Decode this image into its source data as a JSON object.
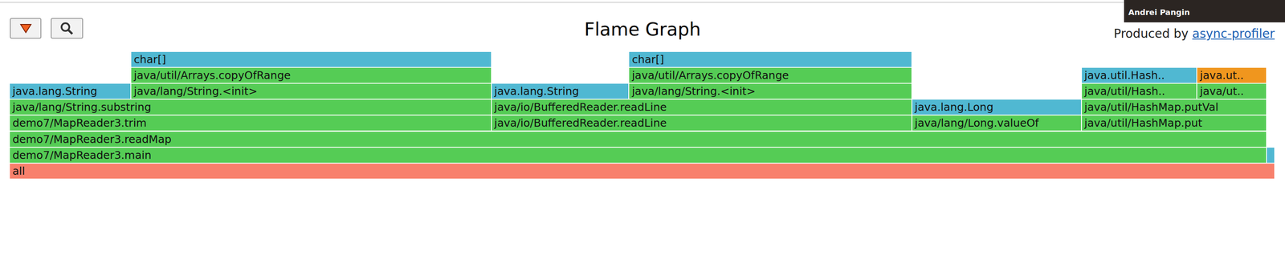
{
  "chart_data": {
    "type": "flame",
    "title": "Flame Graph",
    "annotations": [
      "Produced by",
      "async-profiler",
      "Andrei Pangin"
    ],
    "frames": [
      {
        "label": "all",
        "start": 0,
        "width": 100,
        "depth": 0,
        "color": "#f8806c"
      },
      {
        "label": "demo7/MapReader3.main",
        "start": 0,
        "width": 99.35,
        "depth": 1,
        "color": "#55cc55"
      },
      {
        "label": null,
        "start": 99.35,
        "width": 0.65,
        "depth": 1,
        "color": "#50b8d2"
      },
      {
        "label": "demo7/MapReader3.readMap",
        "start": 0,
        "width": 99.35,
        "depth": 2,
        "color": "#55cc55"
      },
      {
        "label": "demo7/MapReader3.trim",
        "start": 0,
        "width": 38.08,
        "depth": 3,
        "color": "#55cc55"
      },
      {
        "label": "java/io/BufferedReader.readLine",
        "start": 38.08,
        "width": 33.23,
        "depth": 3,
        "color": "#55cc55"
      },
      {
        "label": "java/lang/Long.valueOf",
        "start": 71.31,
        "width": 13.41,
        "depth": 3,
        "color": "#55cc55"
      },
      {
        "label": "java/util/HashMap.put",
        "start": 84.72,
        "width": 14.63,
        "depth": 3,
        "color": "#55cc55"
      },
      {
        "label": "java/lang/String.substring",
        "start": 0,
        "width": 38.08,
        "depth": 4,
        "color": "#55cc55"
      },
      {
        "label": "java/io/BufferedReader.readLine",
        "start": 38.08,
        "width": 33.23,
        "depth": 4,
        "color": "#55cc55"
      },
      {
        "label": "java.lang.Long",
        "start": 71.31,
        "width": 13.41,
        "depth": 4,
        "color": "#50b8d2"
      },
      {
        "label": "java/util/HashMap.putVal",
        "start": 84.72,
        "width": 14.63,
        "depth": 4,
        "color": "#55cc55"
      },
      {
        "label": "java.lang.String",
        "start": 0,
        "width": 9.59,
        "depth": 5,
        "color": "#50b8d2"
      },
      {
        "label": "java/lang/String.<init>",
        "start": 9.59,
        "width": 28.49,
        "depth": 5,
        "color": "#55cc55"
      },
      {
        "label": "java.lang.String",
        "start": 38.08,
        "width": 10.88,
        "depth": 5,
        "color": "#50b8d2"
      },
      {
        "label": "java/lang/String.<init>",
        "start": 48.96,
        "width": 22.35,
        "depth": 5,
        "color": "#55cc55"
      },
      {
        "label": "java/util/Hash..",
        "start": 84.72,
        "width": 9.13,
        "depth": 5,
        "color": "#55cc55"
      },
      {
        "label": "java/ut..",
        "start": 93.85,
        "width": 5.5,
        "depth": 5,
        "color": "#55cc55"
      },
      {
        "label": "java/util/Arrays.copyOfRange",
        "start": 9.59,
        "width": 28.49,
        "depth": 6,
        "color": "#55cc55"
      },
      {
        "label": "java/util/Arrays.copyOfRange",
        "start": 48.96,
        "width": 22.35,
        "depth": 6,
        "color": "#55cc55"
      },
      {
        "label": "java.util.Hash..",
        "start": 84.72,
        "width": 9.13,
        "depth": 6,
        "color": "#50b8d2"
      },
      {
        "label": "java.ut..",
        "start": 93.85,
        "width": 5.5,
        "depth": 6,
        "color": "#f0961e"
      },
      {
        "label": "char[]",
        "start": 9.59,
        "width": 28.49,
        "depth": 7,
        "color": "#50b8d2"
      },
      {
        "label": "char[]",
        "start": 48.96,
        "width": 22.35,
        "depth": 7,
        "color": "#50b8d2"
      }
    ]
  }
}
